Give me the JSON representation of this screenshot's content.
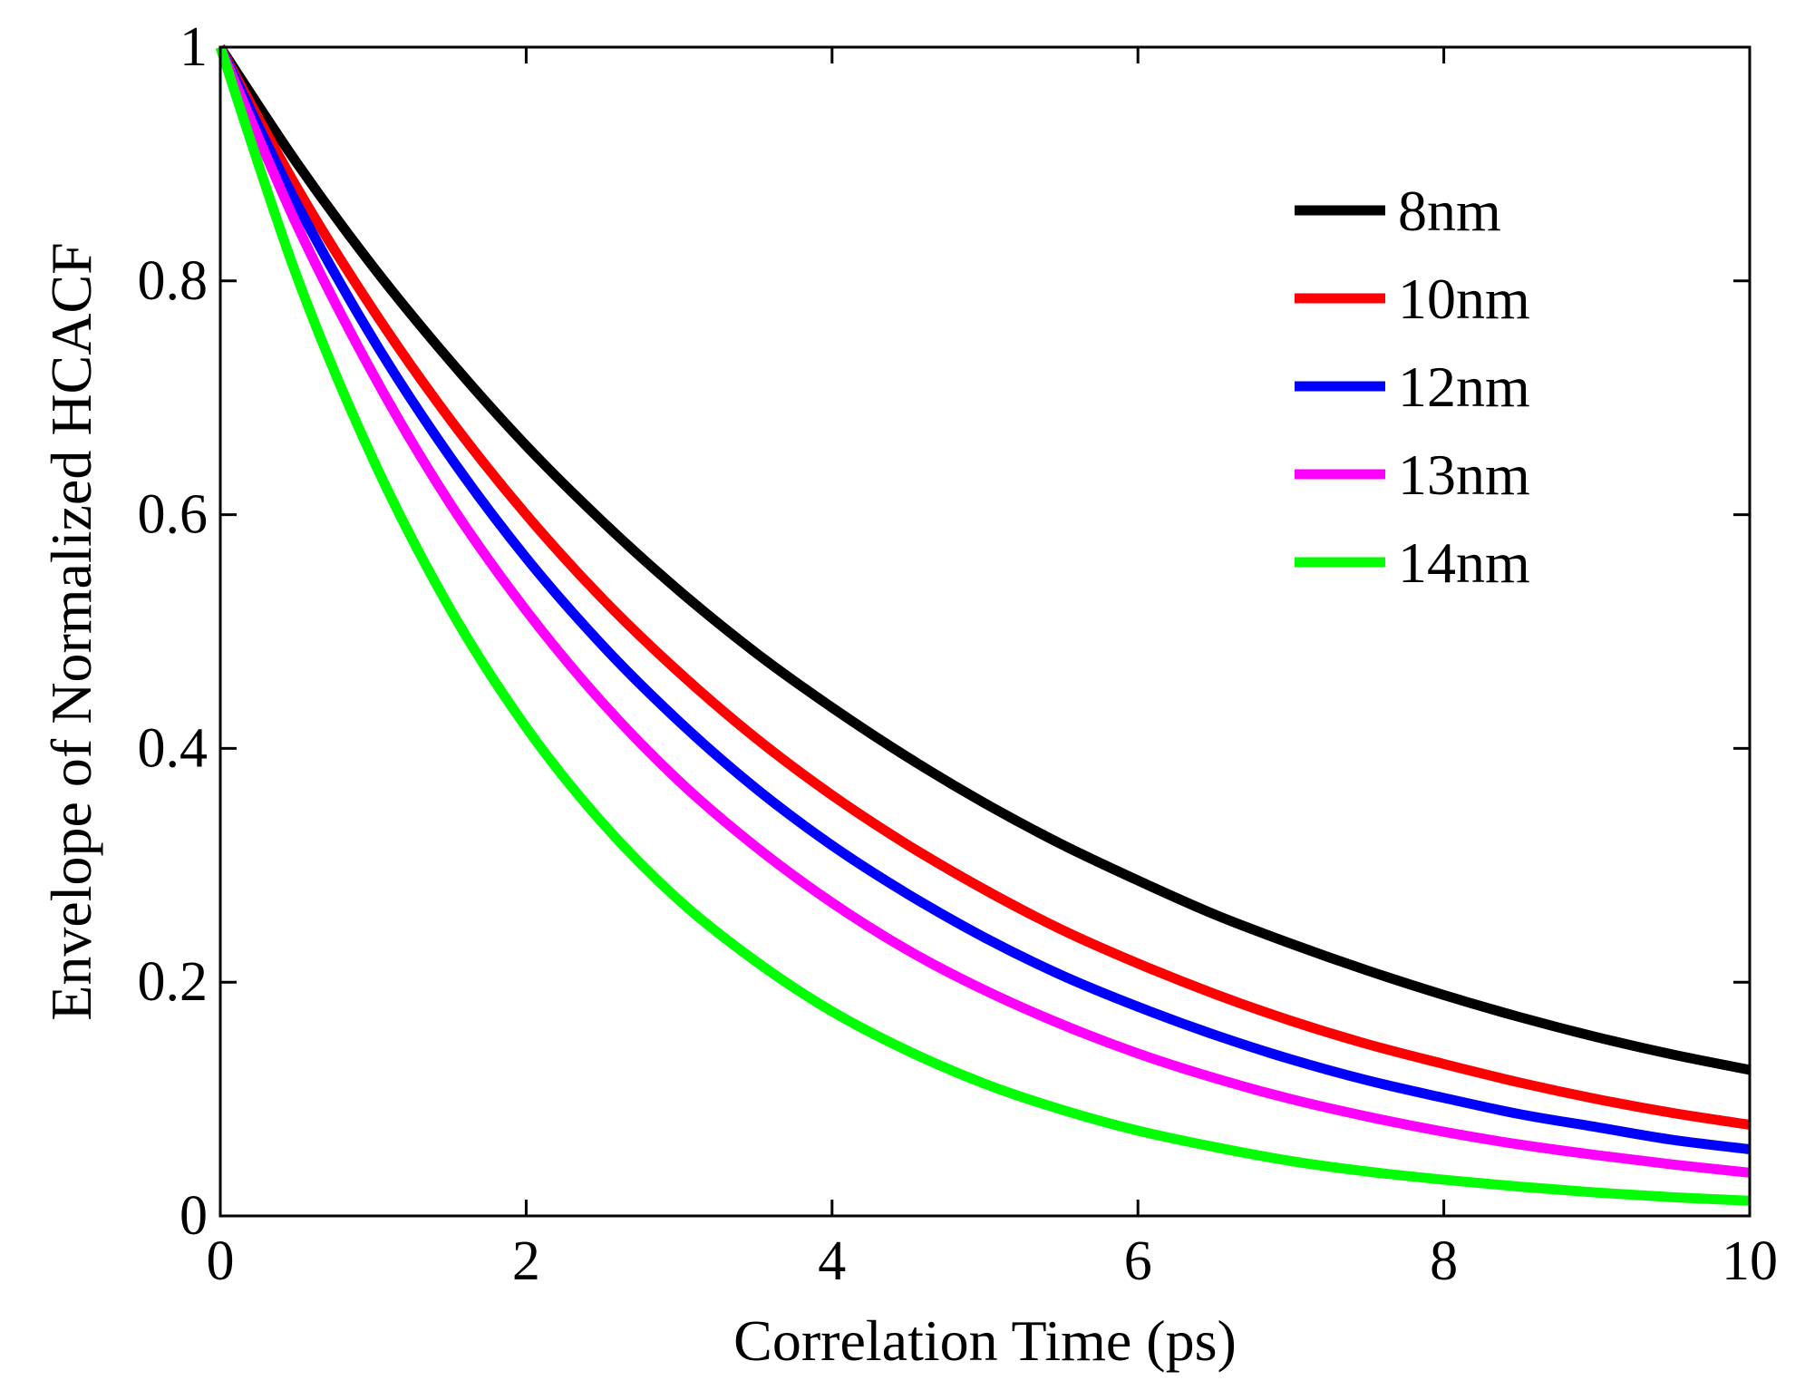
{
  "chart_data": {
    "type": "line",
    "title": "",
    "xlabel": "Correlation Time (ps)",
    "ylabel": "Envelope of Normalized HCACF",
    "xlim": [
      0,
      10
    ],
    "ylim": [
      0,
      1
    ],
    "xticks": [
      0,
      2,
      4,
      6,
      8,
      10
    ],
    "yticks": [
      0,
      0.2,
      0.4,
      0.6,
      0.8,
      1
    ],
    "xtick_labels": [
      "0",
      "2",
      "4",
      "6",
      "8",
      "10"
    ],
    "ytick_labels": [
      "0",
      "0.2",
      "0.4",
      "0.6",
      "0.8",
      "1"
    ],
    "grid": false,
    "legend_position": "top-right",
    "x": [
      0,
      0.5,
      1,
      1.5,
      2,
      2.5,
      3,
      3.5,
      4,
      4.5,
      5,
      5.5,
      6,
      6.5,
      7,
      7.5,
      8,
      8.5,
      9,
      9.5,
      10
    ],
    "series": [
      {
        "name": "8nm",
        "color": "#000000",
        "values": [
          1.0,
          0.901,
          0.812,
          0.732,
          0.659,
          0.594,
          0.535,
          0.482,
          0.435,
          0.392,
          0.353,
          0.318,
          0.287,
          0.258,
          0.233,
          0.21,
          0.189,
          0.17,
          0.153,
          0.138,
          0.125
        ]
      },
      {
        "name": "10nm",
        "color": "#ff0000",
        "values": [
          1.0,
          0.88,
          0.775,
          0.682,
          0.6,
          0.528,
          0.465,
          0.409,
          0.36,
          0.317,
          0.279,
          0.245,
          0.216,
          0.19,
          0.167,
          0.147,
          0.13,
          0.114,
          0.1,
          0.088,
          0.078
        ]
      },
      {
        "name": "12nm",
        "color": "#0000ff",
        "values": [
          1.0,
          0.866,
          0.75,
          0.65,
          0.563,
          0.488,
          0.423,
          0.366,
          0.317,
          0.275,
          0.238,
          0.206,
          0.179,
          0.155,
          0.134,
          0.116,
          0.101,
          0.087,
          0.076,
          0.065,
          0.057
        ]
      },
      {
        "name": "13nm",
        "color": "#ff00ff",
        "values": [
          1.0,
          0.848,
          0.72,
          0.61,
          0.518,
          0.439,
          0.372,
          0.316,
          0.268,
          0.227,
          0.193,
          0.164,
          0.139,
          0.118,
          0.1,
          0.085,
          0.072,
          0.061,
          0.052,
          0.044,
          0.037
        ]
      },
      {
        "name": "14nm",
        "color": "#00ff00",
        "values": [
          1.0,
          0.804,
          0.647,
          0.52,
          0.418,
          0.336,
          0.27,
          0.218,
          0.175,
          0.141,
          0.113,
          0.091,
          0.073,
          0.059,
          0.047,
          0.038,
          0.031,
          0.025,
          0.02,
          0.016,
          0.013
        ]
      }
    ]
  }
}
